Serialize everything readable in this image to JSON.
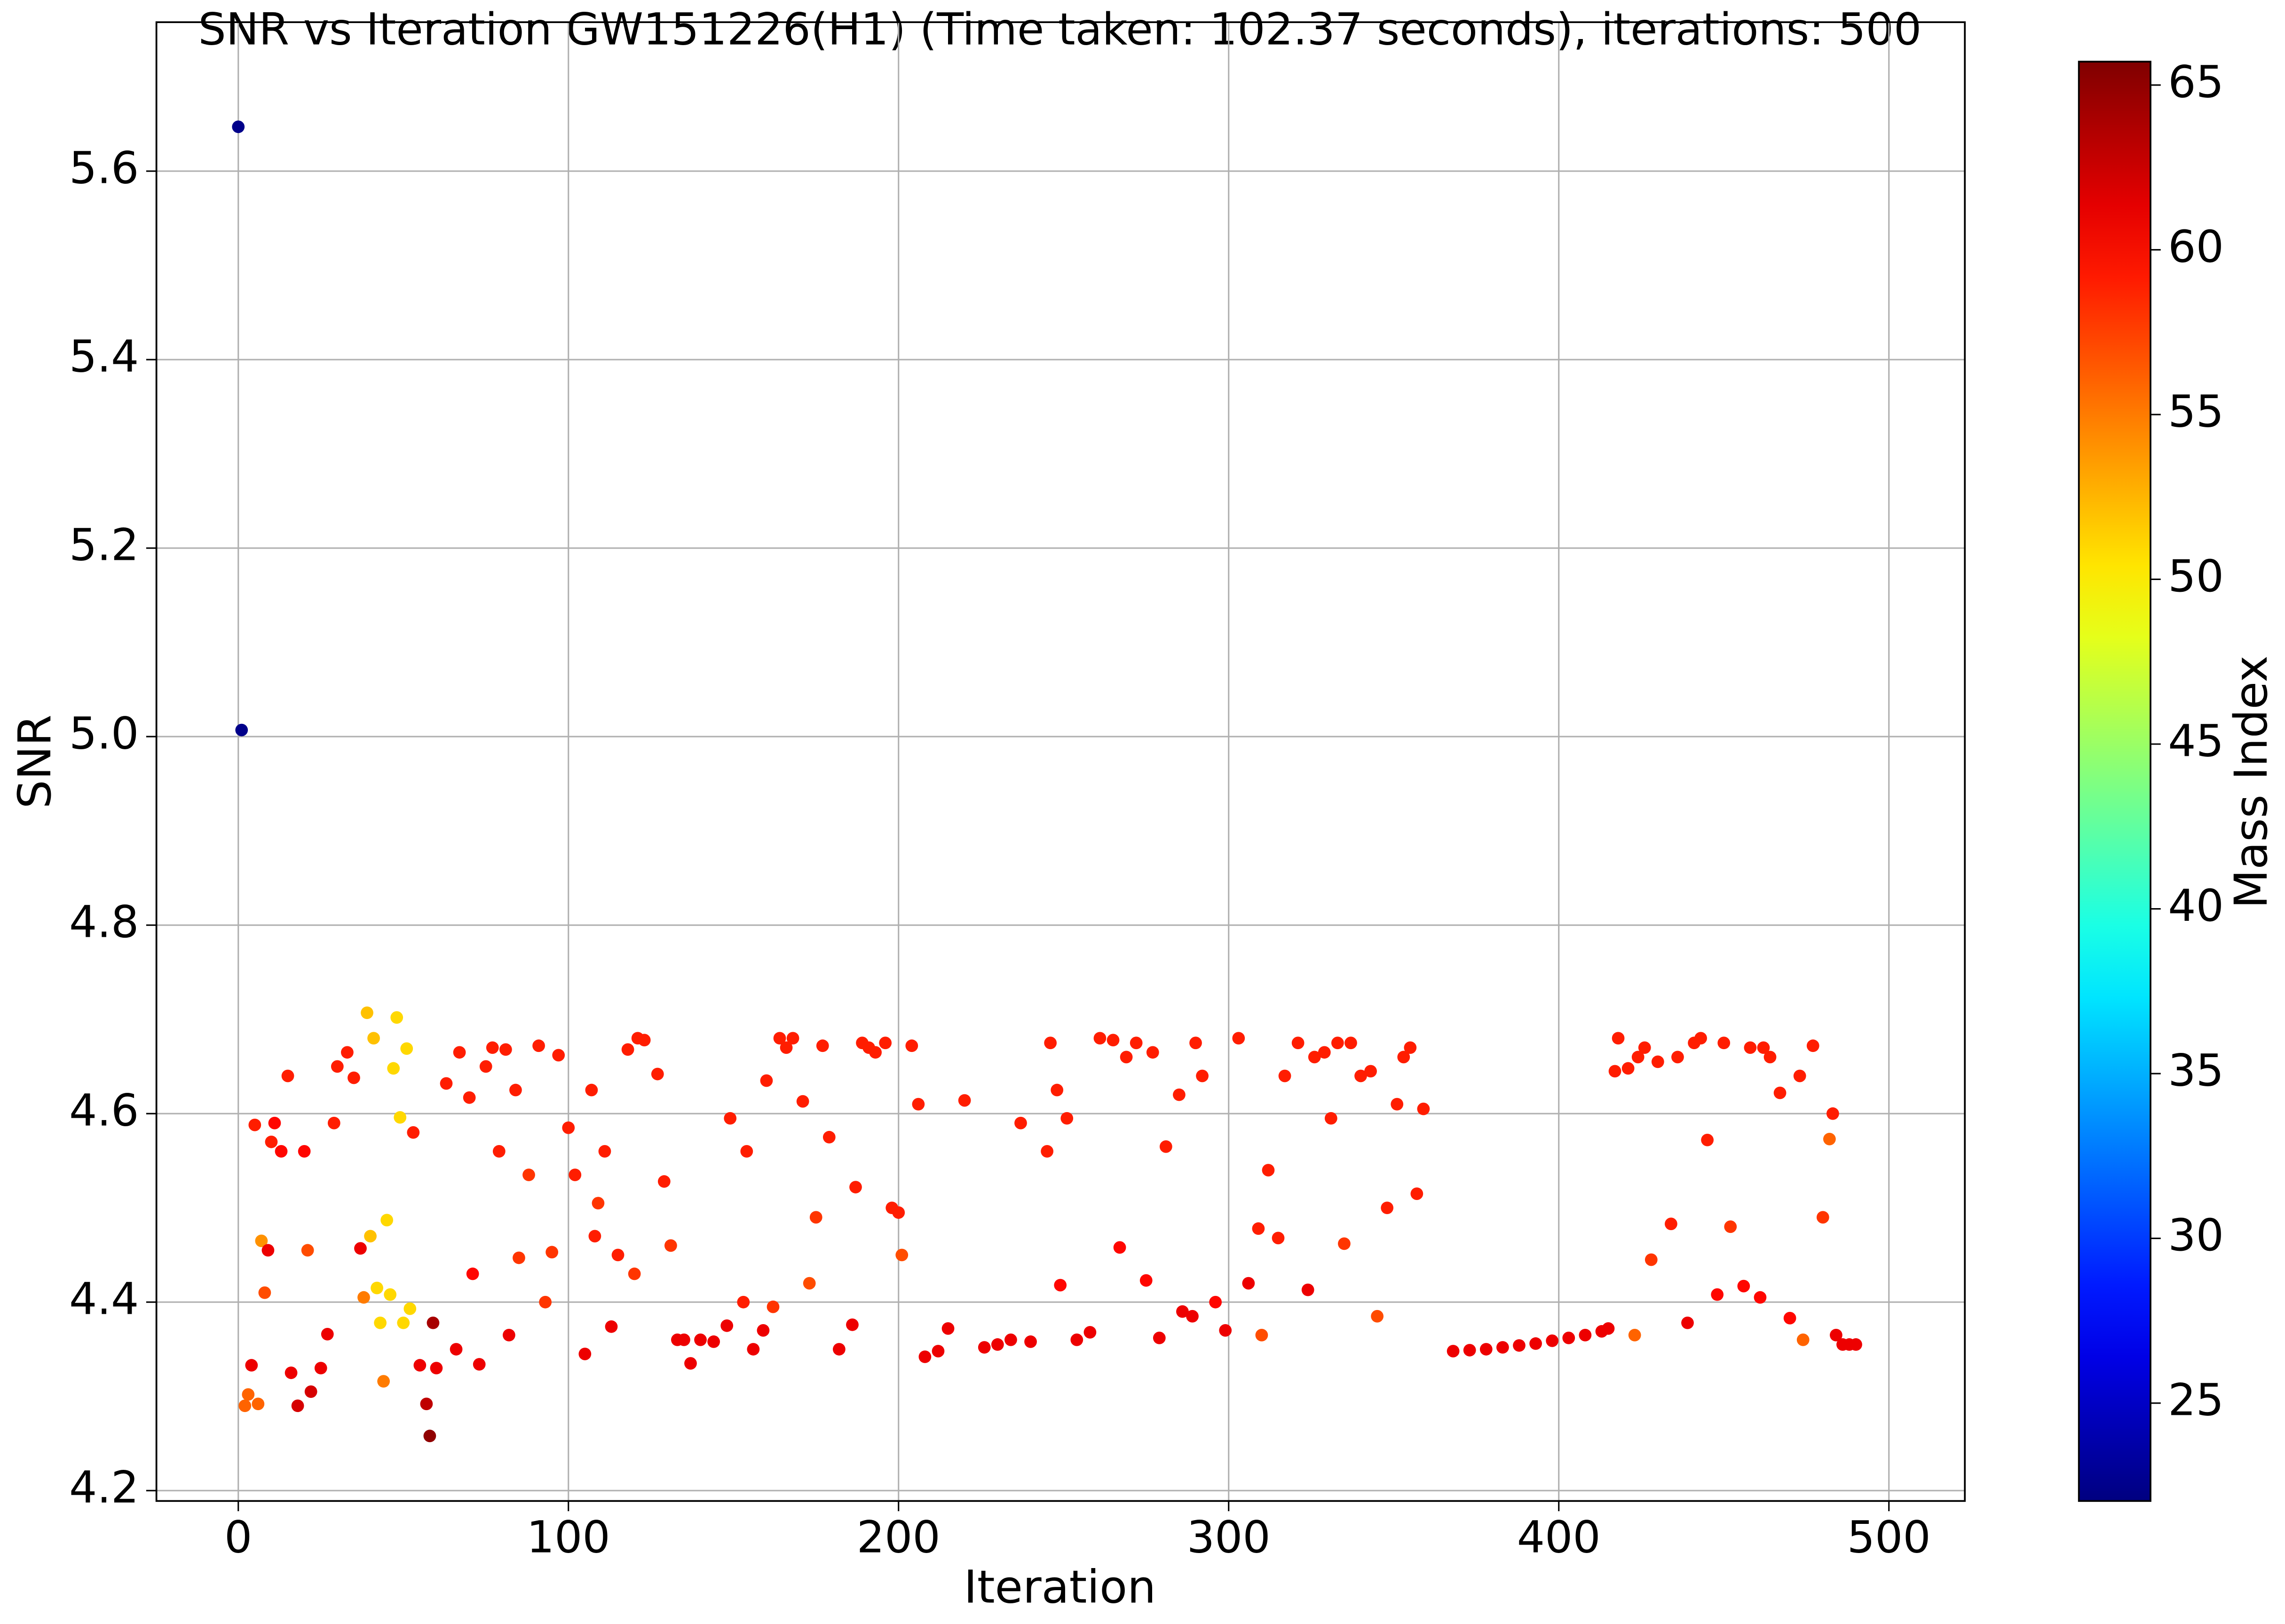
{
  "chart_data": {
    "type": "scatter",
    "title": "SNR vs Iteration GW151226(H1) (Time taken: 102.37 seconds), iterations: 500",
    "x_label": "Iteration",
    "y_label": "SNR",
    "colorbar_label": "Mass Index",
    "colormap": "jet",
    "grid": true,
    "xlim": [
      -24.8,
      523
    ],
    "ylim": [
      4.189,
      5.758
    ],
    "xticks": [
      0,
      100,
      200,
      300,
      400,
      500
    ],
    "yticks": [
      {
        "value": 4.2,
        "label": "4.2"
      },
      {
        "value": 4.4,
        "label": "4.4"
      },
      {
        "value": 4.6,
        "label": "4.6"
      },
      {
        "value": 4.8,
        "label": "4.8"
      },
      {
        "value": 5.0,
        "label": "5.0"
      },
      {
        "value": 5.2,
        "label": "5.2"
      },
      {
        "value": 5.4,
        "label": "5.4"
      },
      {
        "value": 5.6,
        "label": "5.6"
      }
    ],
    "clim": [
      22.03,
      65.71
    ],
    "cticks": [
      25,
      30,
      35,
      40,
      45,
      50,
      55,
      60,
      65
    ],
    "x": [
      0,
      1,
      2,
      3,
      4,
      5,
      6,
      7,
      8,
      9,
      10,
      11,
      13,
      15,
      16,
      18,
      20,
      21,
      22,
      25,
      27,
      29,
      30,
      33,
      35,
      37,
      38,
      39,
      40,
      41,
      42,
      43,
      44,
      45,
      46,
      47,
      48,
      49,
      50,
      51,
      52,
      53,
      55,
      57,
      58,
      59,
      60,
      63,
      66,
      67,
      70,
      71,
      73,
      75,
      77,
      79,
      81,
      82,
      84,
      85,
      88,
      91,
      93,
      95,
      97,
      100,
      102,
      105,
      107,
      108,
      109,
      111,
      113,
      115,
      118,
      120,
      121,
      123,
      127,
      129,
      131,
      133,
      135,
      137,
      140,
      144,
      148,
      149,
      153,
      154,
      156,
      159,
      160,
      162,
      164,
      166,
      168,
      171,
      173,
      175,
      177,
      179,
      182,
      186,
      187,
      189,
      191,
      193,
      196,
      198,
      200,
      201,
      204,
      206,
      208,
      212,
      215,
      220,
      226,
      230,
      234,
      237,
      240,
      245,
      246,
      248,
      249,
      251,
      254,
      258,
      261,
      265,
      267,
      269,
      272,
      275,
      277,
      279,
      281,
      285,
      286,
      289,
      290,
      292,
      296,
      299,
      303,
      306,
      309,
      310,
      312,
      315,
      317,
      321,
      324,
      326,
      329,
      331,
      333,
      335,
      337,
      340,
      343,
      345,
      348,
      351,
      353,
      355,
      357,
      359,
      368,
      373,
      378,
      383,
      388,
      393,
      398,
      403,
      408,
      413,
      415,
      417,
      418,
      421,
      423,
      424,
      426,
      428,
      430,
      434,
      436,
      439,
      441,
      443,
      445,
      448,
      450,
      452,
      456,
      458,
      461,
      462,
      464,
      467,
      470,
      473,
      474,
      477,
      480,
      482,
      483,
      484,
      486,
      488,
      490
    ],
    "y": [
      5.647,
      5.007,
      4.29,
      4.302,
      4.333,
      4.588,
      4.292,
      4.465,
      4.41,
      4.455,
      4.57,
      4.59,
      4.56,
      4.64,
      4.325,
      4.29,
      4.56,
      4.455,
      4.305,
      4.33,
      4.366,
      4.59,
      4.65,
      4.665,
      4.638,
      4.457,
      4.405,
      4.707,
      4.47,
      4.68,
      4.415,
      4.378,
      4.316,
      4.487,
      4.408,
      4.648,
      4.702,
      4.596,
      4.378,
      4.669,
      4.393,
      4.58,
      4.333,
      4.292,
      4.258,
      4.378,
      4.33,
      4.632,
      4.35,
      4.665,
      4.617,
      4.43,
      4.334,
      4.65,
      4.67,
      4.56,
      4.668,
      4.365,
      4.625,
      4.447,
      4.535,
      4.672,
      4.4,
      4.453,
      4.662,
      4.585,
      4.535,
      4.345,
      4.625,
      4.47,
      4.505,
      4.56,
      4.374,
      4.45,
      4.668,
      4.43,
      4.68,
      4.678,
      4.642,
      4.528,
      4.46,
      4.36,
      4.36,
      4.335,
      4.36,
      4.358,
      4.375,
      4.595,
      4.4,
      4.56,
      4.35,
      4.37,
      4.635,
      4.395,
      4.68,
      4.67,
      4.68,
      4.613,
      4.42,
      4.49,
      4.672,
      4.575,
      4.35,
      4.376,
      4.522,
      4.675,
      4.67,
      4.665,
      4.675,
      4.5,
      4.495,
      4.45,
      4.672,
      4.61,
      4.342,
      4.348,
      4.372,
      4.614,
      4.352,
      4.355,
      4.36,
      4.59,
      4.358,
      4.56,
      4.675,
      4.625,
      4.418,
      4.595,
      4.36,
      4.368,
      4.68,
      4.678,
      4.458,
      4.66,
      4.675,
      4.423,
      4.665,
      4.362,
      4.565,
      4.62,
      4.39,
      4.385,
      4.675,
      4.64,
      4.4,
      4.37,
      4.68,
      4.42,
      4.478,
      4.365,
      4.54,
      4.468,
      4.64,
      4.675,
      4.413,
      4.66,
      4.665,
      4.595,
      4.675,
      4.462,
      4.675,
      4.64,
      4.645,
      4.385,
      4.5,
      4.61,
      4.66,
      4.67,
      4.515,
      4.605,
      4.348,
      4.349,
      4.35,
      4.352,
      4.354,
      4.356,
      4.359,
      4.362,
      4.365,
      4.369,
      4.372,
      4.645,
      4.68,
      4.648,
      4.365,
      4.66,
      4.67,
      4.445,
      4.655,
      4.483,
      4.66,
      4.378,
      4.675,
      4.68,
      4.572,
      4.408,
      4.675,
      4.48,
      4.417,
      4.67,
      4.405,
      4.67,
      4.66,
      4.622,
      4.383,
      4.64,
      4.36,
      4.672,
      4.49,
      4.573,
      4.6,
      4.365,
      4.355,
      4.355,
      4.355
    ],
    "color_values": [
      22.5,
      22.5,
      56,
      56,
      61,
      59,
      56,
      54,
      57,
      61,
      59,
      60,
      60,
      59,
      61,
      62,
      60,
      57,
      62,
      61,
      61,
      59,
      59,
      59,
      59,
      61,
      55,
      52,
      52,
      52,
      51,
      51,
      55,
      51,
      51,
      51,
      51,
      51,
      51,
      51,
      51,
      59,
      61,
      63,
      65,
      64,
      61,
      59,
      61,
      59,
      59,
      60,
      61,
      59,
      59,
      59,
      59,
      61,
      59,
      58,
      58,
      59,
      58,
      58,
      59,
      59,
      59,
      61,
      59,
      59,
      58,
      59,
      61,
      59,
      59,
      58,
      59,
      59,
      59,
      59,
      58,
      61,
      61,
      61,
      61,
      61,
      61,
      59,
      59,
      59,
      61,
      61,
      59,
      58,
      59,
      59,
      59,
      59,
      57,
      58,
      59,
      59,
      61,
      61,
      59,
      59,
      59,
      59,
      59,
      59,
      59,
      57,
      59,
      59,
      61,
      61,
      61,
      59,
      61,
      61,
      61,
      59,
      61,
      59,
      59,
      59,
      60,
      59,
      61,
      61,
      59,
      59,
      60,
      59,
      59,
      60,
      59,
      61,
      59,
      59,
      61,
      61,
      59,
      59,
      60,
      61,
      59,
      61,
      59,
      57,
      59,
      59,
      59,
      59,
      61,
      59,
      59,
      59,
      59,
      58,
      59,
      59,
      59,
      57,
      59,
      59,
      59,
      59,
      59,
      59,
      61,
      61,
      61,
      61,
      61,
      61,
      61,
      61,
      61,
      61,
      61,
      59,
      59,
      59,
      56,
      59,
      59,
      58,
      59,
      59,
      59,
      61,
      59,
      59,
      59,
      60,
      59,
      58,
      60,
      59,
      60,
      59,
      59,
      59,
      60,
      59,
      56,
      59,
      58,
      56,
      59,
      61,
      61,
      61,
      61
    ]
  }
}
